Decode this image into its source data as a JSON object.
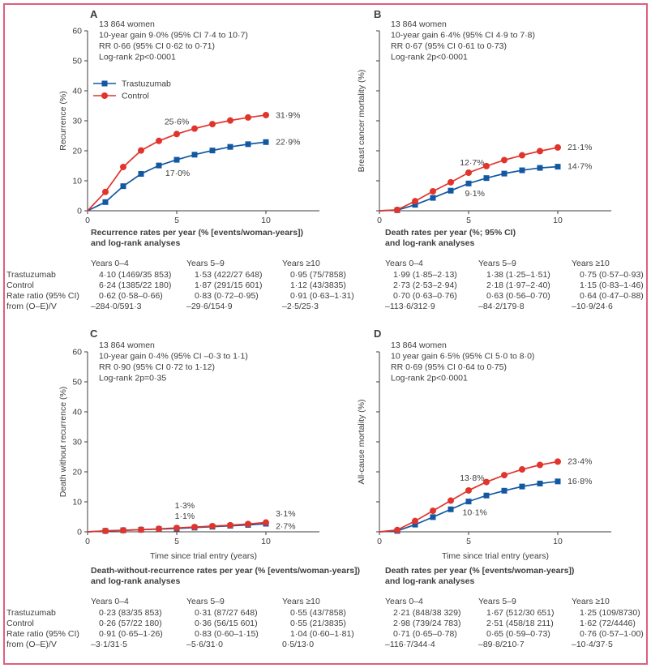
{
  "figure": {
    "border_color": "#df5f7f",
    "text_color": "#3d3d3c"
  },
  "colors": {
    "trastuzumab": "#1358a2",
    "control": "#e1342c"
  },
  "legend": {
    "items": [
      "Trastuzumab",
      "Control"
    ]
  },
  "chart_data": [
    {
      "type": "line",
      "letter": "A",
      "stats": [
        "13 864 women",
        "10-year gain 9·0% (95% CI 7·4 to 10·7)",
        "RR 0·66 (95% CI 0·62 to 0·71)",
        "Log-rank 2p<0·0001"
      ],
      "ylabel": "Recurrence (%)",
      "xlabel": "",
      "x_label_shown": false,
      "y_numbers_shown": true,
      "legend_shown": true,
      "ylim": [
        0,
        60
      ],
      "ytick_step": 10,
      "xticks": [
        0,
        5,
        10
      ],
      "x": [
        0,
        1,
        2,
        3,
        4,
        5,
        6,
        7,
        8,
        9,
        10
      ],
      "series": [
        {
          "name": "Trastuzumab",
          "marker": "square",
          "color": "#1358a2",
          "values": [
            0,
            2.9,
            8.2,
            12.3,
            15.1,
            17.0,
            18.7,
            20.1,
            21.3,
            22.2,
            22.9
          ]
        },
        {
          "name": "Control",
          "marker": "circle",
          "color": "#e1342c",
          "values": [
            0,
            6.3,
            14.6,
            20.1,
            23.3,
            25.6,
            27.4,
            28.9,
            30.1,
            31.1,
            31.9
          ]
        }
      ],
      "annotations": [
        {
          "text": "25·6%",
          "x": 5.0,
          "y": 28.8,
          "anchor": "middle"
        },
        {
          "text": "17·0%",
          "x": 5.05,
          "y": 11.6,
          "anchor": "middle"
        },
        {
          "text": "31·9%",
          "x": 10.55,
          "y": 31.0,
          "anchor": "start"
        },
        {
          "text": "22·9%",
          "x": 10.55,
          "y": 22.0,
          "anchor": "start"
        }
      ]
    },
    {
      "type": "line",
      "letter": "B",
      "stats": [
        "13 864 women",
        "10-year gain 6·4% (95% CI 4·9 to 7·8)",
        "RR 0·67 (95% CI 0·61 to 0·73)",
        "Log-rank 2p<0·0001"
      ],
      "ylabel": "Breast cancer mortality (%)",
      "xlabel": "",
      "x_label_shown": false,
      "y_numbers_shown": false,
      "legend_shown": false,
      "ylim": [
        0,
        60
      ],
      "ytick_step": 10,
      "xticks": [
        0,
        5,
        10
      ],
      "x": [
        0,
        1,
        2,
        3,
        4,
        5,
        6,
        7,
        8,
        9,
        10
      ],
      "series": [
        {
          "name": "Trastuzumab",
          "marker": "square",
          "color": "#1358a2",
          "values": [
            0,
            0.2,
            2.0,
            4.3,
            6.7,
            9.1,
            10.9,
            12.4,
            13.5,
            14.3,
            14.7
          ]
        },
        {
          "name": "Control",
          "marker": "circle",
          "color": "#e1342c",
          "values": [
            0,
            0.3,
            3.2,
            6.5,
            9.5,
            12.7,
            14.9,
            16.9,
            18.5,
            19.9,
            21.1
          ]
        }
      ],
      "annotations": [
        {
          "text": "12·7%",
          "x": 5.2,
          "y": 15.2,
          "anchor": "middle"
        },
        {
          "text": "9·1%",
          "x": 5.35,
          "y": 4.9,
          "anchor": "middle"
        },
        {
          "text": "21·1%",
          "x": 10.55,
          "y": 20.3,
          "anchor": "start"
        },
        {
          "text": "14·7%",
          "x": 10.55,
          "y": 13.9,
          "anchor": "start"
        }
      ]
    },
    {
      "type": "line",
      "letter": "C",
      "stats": [
        "13 864 women",
        "10-year gain 0·4% (95% CI –0·3 to 1·1)",
        "RR 0·90 (95% CI 0·72 to 1·12)",
        "Log-rank 2p=0·35"
      ],
      "ylabel": "Death without recurrence (%)",
      "xlabel": "Time since trial entry (years)",
      "x_label_shown": true,
      "y_numbers_shown": true,
      "legend_shown": false,
      "ylim": [
        0,
        60
      ],
      "ytick_step": 10,
      "xticks": [
        0,
        5,
        10
      ],
      "x": [
        0,
        1,
        2,
        3,
        4,
        5,
        6,
        7,
        8,
        9,
        10
      ],
      "series": [
        {
          "name": "Trastuzumab",
          "marker": "square",
          "color": "#1358a2",
          "values": [
            0,
            0.3,
            0.5,
            0.7,
            0.9,
            1.1,
            1.4,
            1.7,
            2.0,
            2.3,
            2.7
          ]
        },
        {
          "name": "Control",
          "marker": "circle",
          "color": "#e1342c",
          "values": [
            0,
            0.3,
            0.5,
            0.7,
            1.0,
            1.3,
            1.6,
            1.9,
            2.2,
            2.6,
            3.1
          ]
        }
      ],
      "annotations": [
        {
          "text": "1·3%",
          "x": 5.45,
          "y": 7.9,
          "anchor": "middle"
        },
        {
          "text": "1·1%",
          "x": 5.45,
          "y": 4.3,
          "anchor": "middle"
        },
        {
          "text": "3·1%",
          "x": 10.55,
          "y": 5.2,
          "anchor": "start"
        },
        {
          "text": "2·7%",
          "x": 10.55,
          "y": 0.9,
          "anchor": "start"
        }
      ]
    },
    {
      "type": "line",
      "letter": "D",
      "stats": [
        "13 864 women",
        "10 year gain 6·5% (95% CI 5·0 to 8·0)",
        "RR 0·69 (95% CI 0·64 to 0·75)",
        "Log-rank 2p<0·0001"
      ],
      "ylabel": "All-cause mortality (%)",
      "xlabel": "Time since trial entry (years)",
      "x_label_shown": true,
      "y_numbers_shown": false,
      "legend_shown": false,
      "ylim": [
        0,
        60
      ],
      "ytick_step": 10,
      "xticks": [
        0,
        5,
        10
      ],
      "x": [
        0,
        1,
        2,
        3,
        4,
        5,
        6,
        7,
        8,
        9,
        10
      ],
      "series": [
        {
          "name": "Trastuzumab",
          "marker": "square",
          "color": "#1358a2",
          "values": [
            0,
            0.3,
            2.4,
            4.9,
            7.5,
            10.1,
            12.1,
            13.7,
            15.1,
            16.1,
            16.8
          ]
        },
        {
          "name": "Control",
          "marker": "circle",
          "color": "#e1342c",
          "values": [
            0,
            0.6,
            3.6,
            7.0,
            10.4,
            13.8,
            16.6,
            18.9,
            20.8,
            22.3,
            23.4
          ]
        }
      ],
      "annotations": [
        {
          "text": "13·8%",
          "x": 5.2,
          "y": 17.0,
          "anchor": "middle"
        },
        {
          "text": "10·1%",
          "x": 5.35,
          "y": 5.5,
          "anchor": "middle"
        },
        {
          "text": "23·4%",
          "x": 10.55,
          "y": 22.6,
          "anchor": "start"
        },
        {
          "text": "16·8%",
          "x": 10.55,
          "y": 15.9,
          "anchor": "start"
        }
      ]
    }
  ],
  "tables": [
    {
      "row_labels": [
        "Trastuzumab",
        "Control",
        "Rate ratio (95% CI)",
        "from (O–E)/V"
      ],
      "sections": [
        {
          "title": [
            "Recurrence rates per year (% [events/woman-years])",
            "and log-rank analyses"
          ],
          "headers": [
            "Years 0–4",
            "Years 5–9",
            "Years ≥10"
          ],
          "rows": [
            [
              "4·10 (1469/35 853)",
              "1·53 (422/27 648)",
              "0·95 (75/7858)"
            ],
            [
              "6·24 (1385/22 180)",
              "1·87 (291/15 601)",
              "1·12 (43/3835)"
            ],
            [
              "0·62 (0·58–0·66)",
              "0·83 (0·72–0·95)",
              "0·91 (0·63–1·31)"
            ],
            [
              "–284·0/591·3",
              "–29·6/154·9",
              "–2·5/25·3"
            ]
          ]
        },
        {
          "title": [
            "Death rates per year (%; 95% CI)",
            "and log-rank analyses"
          ],
          "headers": [
            "Years 0–4",
            "Years 5–9",
            "Years ≥10"
          ],
          "rows": [
            [
              "1·99 (1·85–2·13)",
              "1·38 (1·25–1·51)",
              "0·75 (0·57–0·93)"
            ],
            [
              "2·73 (2·53–2·94)",
              "2·18 (1·97–2·40)",
              "1·15 (0·83–1·46)"
            ],
            [
              "0·70 (0·63–0·76)",
              "0·63 (0·56–0·70)",
              "0·64 (0·47–0·88)"
            ],
            [
              "–113·6/312·9",
              "–84·2/179·8",
              "–10·9/24·6"
            ]
          ]
        }
      ]
    },
    {
      "row_labels": [
        "Trastuzumab",
        "Control",
        "Rate ratio (95% CI)",
        "from (O–E)/V"
      ],
      "sections": [
        {
          "title": [
            "Death-without-recurrence rates per year (% [events/woman-years])",
            "and log-rank analyses"
          ],
          "headers": [
            "Years 0–4",
            "Years 5–9",
            "Years ≥10"
          ],
          "rows": [
            [
              "0·23 (83/35 853)",
              "0·31 (87/27 648)",
              "0·55 (43/7858)"
            ],
            [
              "0·26 (57/22 180)",
              "0·36 (56/15 601)",
              "0·55 (21/3835)"
            ],
            [
              "0·91 (0·65–1·26)",
              "0·83 (0·60–1·15)",
              "1·04 (0·60–1·81)"
            ],
            [
              "–3·1/31·5",
              "–5·6/31·0",
              "0·5/13·0"
            ]
          ]
        },
        {
          "title": [
            "Death rates per year (% [events/woman-years])",
            "and log-rank analyses"
          ],
          "headers": [
            "Years 0–4",
            "Years 5–9",
            "Years ≥10"
          ],
          "rows": [
            [
              "2·21 (848/38 329)",
              "1·67 (512/30 651)",
              "1·25 (109/8730)"
            ],
            [
              "2·98 (739/24 783)",
              "2·51 (458/18 211)",
              "1·62 (72/4446)"
            ],
            [
              "0·71 (0·65–0·78)",
              "0·65 (0·59–0·73)",
              "0·76 (0·57–1·00)"
            ],
            [
              "–116·7/344·4",
              "–89·8/210·7",
              "–10·4/37·5"
            ]
          ]
        }
      ]
    }
  ]
}
